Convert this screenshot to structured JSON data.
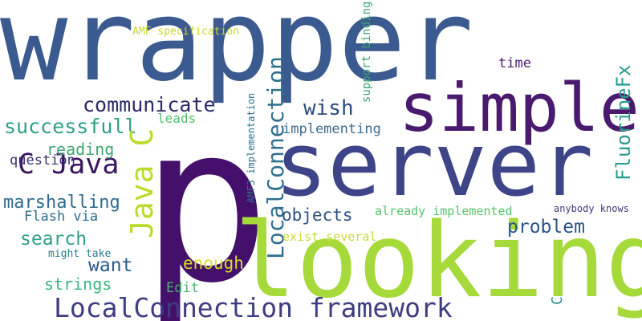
{
  "words": [
    {
      "text": "wrapper",
      "color": "#3b5a8f",
      "orientation": "horizontal"
    },
    {
      "text": "p",
      "color": "#44106b",
      "orientation": "horizontal"
    },
    {
      "text": "looking",
      "color": "#a6d93a",
      "orientation": "horizontal"
    },
    {
      "text": "server",
      "color": "#3d4488",
      "orientation": "horizontal"
    },
    {
      "text": "simple",
      "color": "#4a1a6e",
      "orientation": "horizontal"
    },
    {
      "text": "LocalConnection framework",
      "color": "#3e3d82",
      "orientation": "horizontal"
    },
    {
      "text": "communicate",
      "color": "#2a2a6a",
      "orientation": "horizontal"
    },
    {
      "text": "successfull",
      "color": "#2fa088",
      "orientation": "horizontal"
    },
    {
      "text": "C Java",
      "color": "#3a1664",
      "orientation": "horizontal"
    },
    {
      "text": "Java C",
      "color": "#b8dc2a",
      "orientation": "vertical"
    },
    {
      "text": "LocalConnection",
      "color": "#2e6f8e",
      "orientation": "vertical"
    },
    {
      "text": "FluorineFx",
      "color": "#2a9d8f",
      "orientation": "vertical"
    },
    {
      "text": "wish",
      "color": "#2b4b7e",
      "orientation": "horizontal"
    },
    {
      "text": "implementing",
      "color": "#3b6c8f",
      "orientation": "horizontal"
    },
    {
      "text": "reading",
      "color": "#3fa872",
      "orientation": "horizontal"
    },
    {
      "text": "question",
      "color": "#3b2f70",
      "orientation": "horizontal"
    },
    {
      "text": "marshalling",
      "color": "#2e6a8e",
      "orientation": "horizontal"
    },
    {
      "text": "Flash via",
      "color": "#2d6e8e",
      "orientation": "horizontal"
    },
    {
      "text": "search",
      "color": "#2fa089",
      "orientation": "horizontal"
    },
    {
      "text": "want",
      "color": "#2c5b8c",
      "orientation": "horizontal"
    },
    {
      "text": "strings",
      "color": "#3bb77b",
      "orientation": "horizontal"
    },
    {
      "text": "might take",
      "color": "#2e7a8c",
      "orientation": "horizontal"
    },
    {
      "text": "objects",
      "color": "#2c4f85",
      "orientation": "horizontal"
    },
    {
      "text": "enough",
      "color": "#d9df24",
      "orientation": "horizontal"
    },
    {
      "text": "Edit",
      "color": "#49b46c",
      "orientation": "horizontal"
    },
    {
      "text": "problem",
      "color": "#2a5585",
      "orientation": "horizontal"
    },
    {
      "text": "time",
      "color": "#4a1a6e",
      "orientation": "horizontal"
    },
    {
      "text": "leads",
      "color": "#53c069",
      "orientation": "horizontal"
    },
    {
      "text": "AMF specification",
      "color": "#c9d82d",
      "orientation": "horizontal"
    },
    {
      "text": "support binding",
      "color": "#3fa375",
      "orientation": "vertical"
    },
    {
      "text": "AMF3 implementation",
      "color": "#2e6e8e",
      "orientation": "vertical"
    },
    {
      "text": "already implemented",
      "color": "#55c46a",
      "orientation": "horizontal"
    },
    {
      "text": "exist several",
      "color": "#c6dd3a",
      "orientation": "horizontal"
    },
    {
      "text": "anybody knows",
      "color": "#3e3779",
      "orientation": "horizontal"
    },
    {
      "text": "C",
      "color": "#2a8d8d",
      "orientation": "vertical"
    }
  ]
}
